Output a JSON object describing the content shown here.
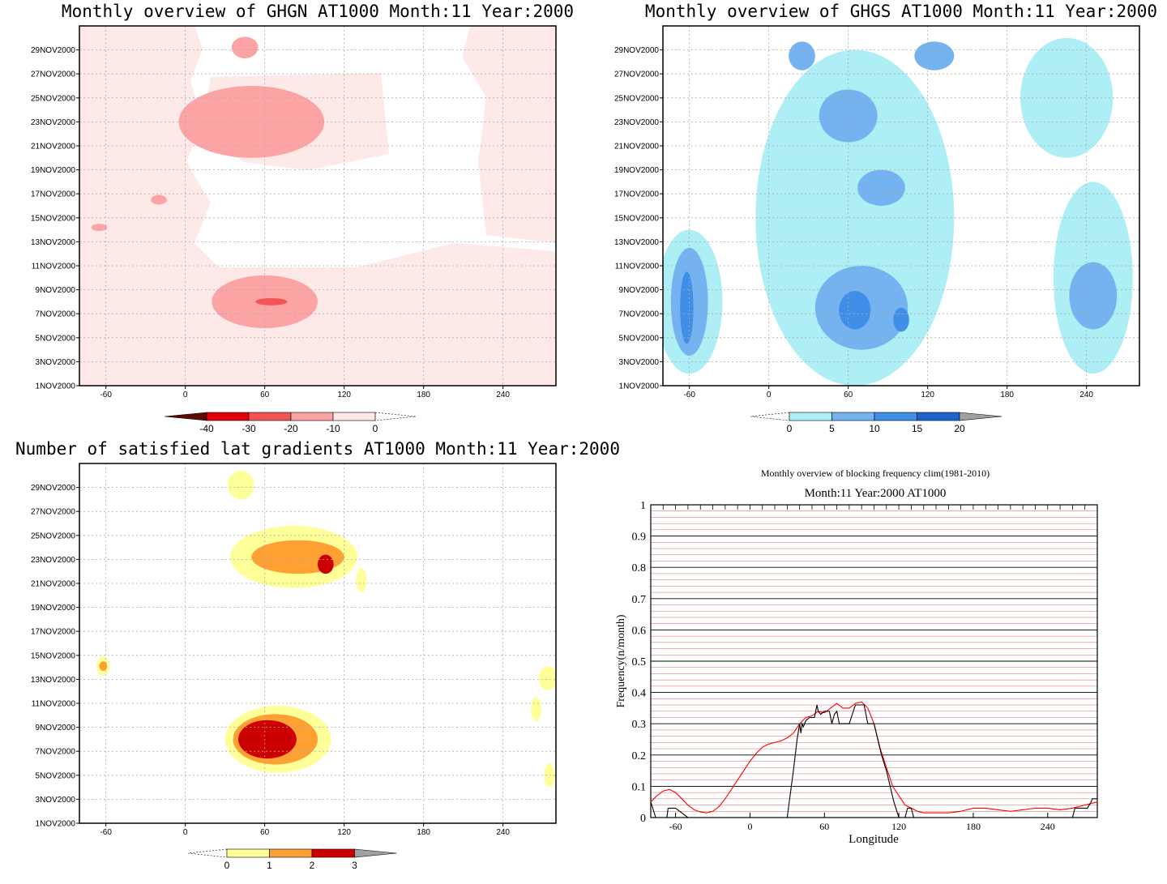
{
  "chart_data": [
    {
      "type": "heatmap",
      "title": "Monthly overview of GHGN AT1000 Month:11 Year:2000",
      "xticks": [
        -60,
        0,
        60,
        120,
        180,
        240
      ],
      "xlim": [
        -80,
        280
      ],
      "yticks": [
        "1NOV2000",
        "3NOV2000",
        "5NOV2000",
        "7NOV2000",
        "9NOV2000",
        "11NOV2000",
        "13NOV2000",
        "15NOV2000",
        "17NOV2000",
        "19NOV2000",
        "21NOV2000",
        "23NOV2000",
        "25NOV2000",
        "27NOV2000",
        "29NOV2000"
      ],
      "grid": true,
      "colorbar": {
        "labels": [
          "-40",
          "-30",
          "-20",
          "-10",
          "0"
        ],
        "colors": [
          "#5c0a00",
          "#e0000e",
          "#f25555",
          "#fca3a3",
          "#fee9e9"
        ]
      },
      "regions": [
        {
          "lon": 50,
          "day": 23,
          "rx": 55,
          "ry": 3.0,
          "level": "-20"
        },
        {
          "lon": 60,
          "day": 8,
          "rx": 40,
          "ry": 2.2,
          "level": "-20"
        },
        {
          "lon": 65,
          "day": 8,
          "rx": 12,
          "ry": 0.3,
          "level": "-30"
        },
        {
          "lon": -20,
          "day": 16.5,
          "rx": 6,
          "ry": 0.4,
          "level": "-20"
        },
        {
          "lon": -65,
          "day": 14.2,
          "rx": 6,
          "ry": 0.3,
          "level": "-20"
        },
        {
          "lon": 45,
          "day": 29.2,
          "rx": 10,
          "ry": 0.9,
          "level": "-20"
        }
      ]
    },
    {
      "type": "heatmap",
      "title": "Monthly overview of GHGS AT1000 Month:11 Year:2000",
      "xticks": [
        -60,
        0,
        60,
        120,
        180,
        240
      ],
      "xlim": [
        -80,
        280
      ],
      "yticks": [
        "1NOV2000",
        "3NOV2000",
        "5NOV2000",
        "7NOV2000",
        "9NOV2000",
        "11NOV2000",
        "13NOV2000",
        "15NOV2000",
        "17NOV2000",
        "19NOV2000",
        "21NOV2000",
        "23NOV2000",
        "25NOV2000",
        "27NOV2000",
        "29NOV2000"
      ],
      "grid": true,
      "colorbar": {
        "labels": [
          "0",
          "5",
          "10",
          "15",
          "20"
        ],
        "colors": [
          "#aeeef5",
          "#75b3f0",
          "#3f8ee8",
          "#1e62cc",
          "#a0a0a0"
        ]
      },
      "regions": [
        {
          "lon": 65,
          "day": 15,
          "rx": 75,
          "ry": 14,
          "level": "0"
        },
        {
          "lon": -60,
          "day": 8,
          "rx": 25,
          "ry": 6,
          "level": "0"
        },
        {
          "lon": 245,
          "day": 10,
          "rx": 30,
          "ry": 8,
          "level": "0"
        },
        {
          "lon": 225,
          "day": 25,
          "rx": 35,
          "ry": 5,
          "level": "0"
        },
        {
          "lon": -60,
          "day": 8,
          "rx": 14,
          "ry": 4.5,
          "level": "5"
        },
        {
          "lon": -62,
          "day": 7.5,
          "rx": 5,
          "ry": 3,
          "level": "10"
        },
        {
          "lon": 70,
          "day": 7.5,
          "rx": 35,
          "ry": 3.5,
          "level": "5"
        },
        {
          "lon": 60,
          "day": 23.5,
          "rx": 22,
          "ry": 2.2,
          "level": "5"
        },
        {
          "lon": 85,
          "day": 17.5,
          "rx": 18,
          "ry": 1.5,
          "level": "5"
        },
        {
          "lon": 245,
          "day": 8.5,
          "rx": 18,
          "ry": 2.8,
          "level": "5"
        },
        {
          "lon": 65,
          "day": 7.3,
          "rx": 12,
          "ry": 1.6,
          "level": "10"
        },
        {
          "lon": 100,
          "day": 6.5,
          "rx": 6,
          "ry": 1.0,
          "level": "10"
        },
        {
          "lon": 25,
          "day": 28.5,
          "rx": 10,
          "ry": 1.2,
          "level": "5"
        },
        {
          "lon": 125,
          "day": 28.5,
          "rx": 15,
          "ry": 1.2,
          "level": "5"
        }
      ]
    },
    {
      "type": "heatmap",
      "title": "Number of satisfied lat gradients AT1000 Month:11 Year:2000",
      "xticks": [
        -60,
        0,
        60,
        120,
        180,
        240
      ],
      "xlim": [
        -80,
        280
      ],
      "yticks": [
        "1NOV2000",
        "3NOV2000",
        "5NOV2000",
        "7NOV2000",
        "9NOV2000",
        "11NOV2000",
        "13NOV2000",
        "15NOV2000",
        "17NOV2000",
        "19NOV2000",
        "21NOV2000",
        "23NOV2000",
        "25NOV2000",
        "27NOV2000",
        "29NOV2000"
      ],
      "grid": true,
      "colorbar": {
        "labels": [
          "0",
          "1",
          "2",
          "3"
        ],
        "colors": [
          "#ffff99",
          "#ffa033",
          "#cc0000",
          "#a0a0a0"
        ]
      },
      "regions": [
        {
          "lon": 82,
          "day": 23.2,
          "rx": 48,
          "ry": 2.6,
          "level": "1"
        },
        {
          "lon": 85,
          "day": 23.2,
          "rx": 35,
          "ry": 1.4,
          "level": "2"
        },
        {
          "lon": 106,
          "day": 22.6,
          "rx": 6,
          "ry": 0.8,
          "level": "3"
        },
        {
          "lon": 70,
          "day": 8,
          "rx": 40,
          "ry": 2.8,
          "level": "1"
        },
        {
          "lon": 68,
          "day": 8,
          "rx": 32,
          "ry": 2.1,
          "level": "2"
        },
        {
          "lon": 62,
          "day": 8,
          "rx": 22,
          "ry": 1.6,
          "level": "3"
        },
        {
          "lon": 42,
          "day": 29.2,
          "rx": 10,
          "ry": 1.2,
          "level": "1"
        },
        {
          "lon": -62,
          "day": 14.1,
          "rx": 5,
          "ry": 0.8,
          "level": "1"
        },
        {
          "lon": -62,
          "day": 14.1,
          "rx": 3,
          "ry": 0.4,
          "level": "2"
        },
        {
          "lon": 274,
          "day": 13.1,
          "rx": 7,
          "ry": 1.0,
          "level": "1"
        },
        {
          "lon": 265,
          "day": 10.5,
          "rx": 4,
          "ry": 1.0,
          "level": "1"
        },
        {
          "lon": 275,
          "day": 5,
          "rx": 4,
          "ry": 1.0,
          "level": "1"
        },
        {
          "lon": 133,
          "day": 21.3,
          "rx": 4,
          "ry": 1.0,
          "level": "1"
        }
      ]
    },
    {
      "type": "line",
      "title": "Monthly overview of blocking frequency clim(1981-2010)",
      "subtitle": "Month:11 Year:2000  AT1000",
      "xlabel": "Longitude",
      "ylabel": "Frequency(n/month)",
      "xlim": [
        -80,
        280
      ],
      "ylim": [
        0,
        1
      ],
      "xticks": [
        -60,
        0,
        60,
        120,
        180,
        240
      ],
      "yticks": [
        "0",
        "0.1",
        "0.2",
        "0.3",
        "0.4",
        "0.5",
        "0.6",
        "0.7",
        "0.8",
        "0.9",
        "1"
      ],
      "grid": true,
      "series": [
        {
          "color": "#ff0000",
          "x": [
            -80,
            -75,
            -70,
            -65,
            -60,
            -55,
            -50,
            -45,
            -40,
            -35,
            -30,
            -25,
            -20,
            -15,
            -10,
            -5,
            0,
            5,
            10,
            15,
            20,
            25,
            30,
            35,
            40,
            45,
            50,
            55,
            60,
            65,
            70,
            75,
            80,
            85,
            90,
            95,
            100,
            105,
            110,
            115,
            120,
            125,
            130,
            135,
            140,
            150,
            160,
            170,
            180,
            190,
            200,
            210,
            220,
            230,
            240,
            250,
            260,
            270,
            280
          ],
          "y": [
            0.05,
            0.07,
            0.085,
            0.09,
            0.08,
            0.06,
            0.04,
            0.025,
            0.018,
            0.015,
            0.02,
            0.035,
            0.06,
            0.09,
            0.12,
            0.15,
            0.18,
            0.205,
            0.225,
            0.235,
            0.24,
            0.245,
            0.255,
            0.27,
            0.3,
            0.32,
            0.325,
            0.34,
            0.335,
            0.35,
            0.365,
            0.35,
            0.35,
            0.365,
            0.37,
            0.35,
            0.3,
            0.22,
            0.16,
            0.1,
            0.07,
            0.04,
            0.03,
            0.02,
            0.015,
            0.015,
            0.015,
            0.02,
            0.03,
            0.03,
            0.025,
            0.02,
            0.025,
            0.03,
            0.03,
            0.025,
            0.03,
            0.04,
            0.05
          ]
        },
        {
          "color": "#000000",
          "x": [
            -80,
            -76,
            -75,
            -70,
            -67,
            -66,
            -65,
            -60,
            -50,
            30,
            32,
            35,
            38,
            40,
            41,
            42,
            43,
            45,
            48,
            50,
            52,
            54,
            55,
            57,
            60,
            62,
            64,
            66,
            68,
            70,
            72,
            75,
            78,
            80,
            85,
            90,
            92,
            95,
            98,
            100,
            103,
            106,
            110,
            113,
            116,
            120,
            125,
            127,
            130,
            132,
            135,
            140,
            200,
            260,
            262,
            265,
            270,
            272,
            275,
            276,
            278,
            280
          ],
          "y": [
            0.05,
            0.0,
            0.0,
            0.0,
            0.0,
            0.03,
            0.03,
            0.03,
            0.0,
            0.0,
            0.06,
            0.15,
            0.25,
            0.3,
            0.27,
            0.3,
            0.29,
            0.31,
            0.32,
            0.32,
            0.32,
            0.36,
            0.34,
            0.33,
            0.34,
            0.34,
            0.34,
            0.3,
            0.33,
            0.34,
            0.3,
            0.3,
            0.3,
            0.3,
            0.36,
            0.36,
            0.36,
            0.3,
            0.3,
            0.3,
            0.25,
            0.2,
            0.15,
            0.1,
            0.05,
            0.0,
            0.0,
            0.03,
            0.03,
            0.0,
            0.0,
            0.0,
            0.0,
            0.0,
            0.03,
            0.03,
            0.03,
            0.03,
            0.05,
            0.06,
            0.06,
            0.06
          ]
        }
      ]
    }
  ]
}
